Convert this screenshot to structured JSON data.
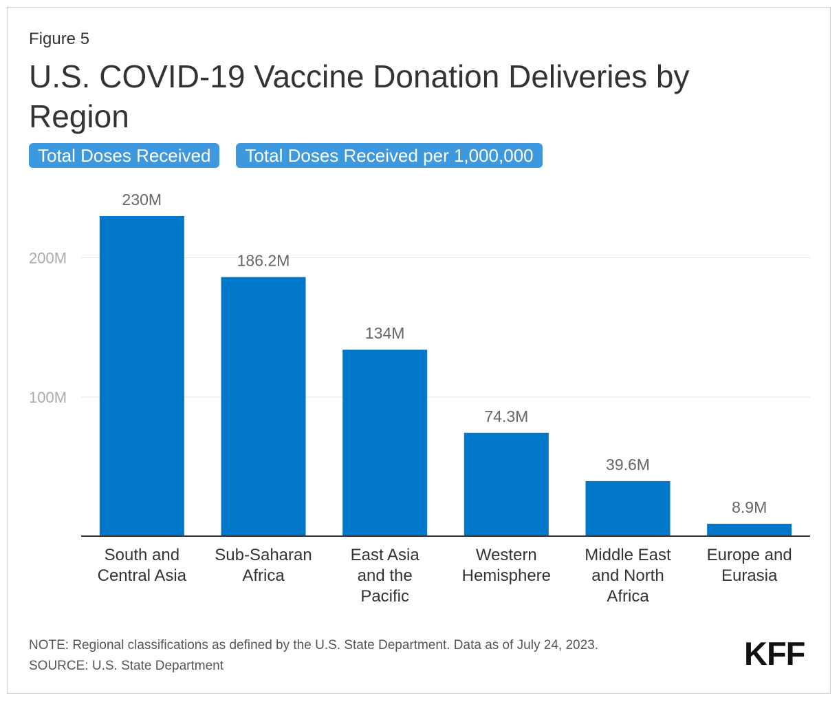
{
  "figure_label": "Figure 5",
  "title": "U.S. COVID-19 Vaccine Donation Deliveries by Region",
  "tabs": [
    {
      "label": "Total Doses Received",
      "active": true
    },
    {
      "label": "Total Doses Received per 1,000,000",
      "active": false
    }
  ],
  "colors": {
    "bar": "#0077c8",
    "tab": "#3d98dd",
    "grid": "#e6e6e6",
    "axis": "#333333",
    "tick_label": "#aaaaaa",
    "value_label": "#666666"
  },
  "chart_data": {
    "type": "bar",
    "categories": [
      [
        "South and",
        "Central Asia"
      ],
      [
        "Sub-Saharan",
        "Africa"
      ],
      [
        "East Asia",
        "and the",
        "Pacific"
      ],
      [
        "Western",
        "Hemisphere"
      ],
      [
        "Middle East",
        "and North",
        "Africa"
      ],
      [
        "Europe and",
        "Eurasia"
      ]
    ],
    "values": [
      230,
      186.2,
      134,
      74.3,
      39.6,
      8.9
    ],
    "value_labels": [
      "230M",
      "186.2M",
      "134M",
      "74.3M",
      "39.6M",
      "8.9M"
    ],
    "yticks": [
      100,
      200
    ],
    "ytick_labels": [
      "100M",
      "200M"
    ],
    "ylim": [
      0,
      230
    ],
    "unit": "M",
    "xlabel": "",
    "ylabel": "",
    "grid": true,
    "legend": "none"
  },
  "footer": {
    "note": "NOTE: Regional classifications as defined by the U.S. State Department. Data as of July 24, 2023.",
    "source": "SOURCE: U.S. State Department",
    "logo": "KFF"
  }
}
